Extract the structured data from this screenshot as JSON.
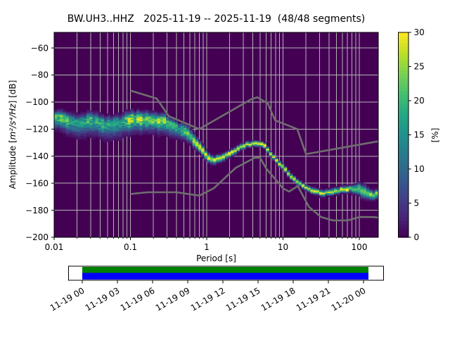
{
  "chart_data": {
    "type": "heatmap",
    "description": "PPSD probabilistic power spectral density plot with Peterson noise model reference curves and data-coverage timeline",
    "title": "BW.UH3..HHZ   2025-11-19 -- 2025-11-19  (48/48 segments)",
    "xlabel": "Period [s]",
    "ylabel": "Amplitude [m²/s⁴/Hz] [dB]",
    "ylabel_parts": {
      "prefix": "Amplitude [",
      "math": "m²/s⁴/Hz",
      "suffix": "] [dB]"
    },
    "xscale": "log",
    "xlim": [
      0.01,
      177.8
    ],
    "ylim": [
      -200,
      -48.5
    ],
    "x_tick_labels": [
      "0.01",
      "0.1",
      "1",
      "10",
      "100"
    ],
    "x_tick_values": [
      0.01,
      0.1,
      1,
      10,
      100
    ],
    "y_tick_values": [
      -60,
      -80,
      -100,
      -120,
      -140,
      -160,
      -180,
      -200
    ],
    "grid": true,
    "background_color": "#440154",
    "grid_color": "#b3b3b3",
    "colorbar": {
      "label": "[%]",
      "min": 0,
      "max": 30,
      "ticks": [
        0,
        5,
        10,
        15,
        20,
        25,
        30
      ],
      "colormap": "viridis"
    },
    "noise_models": {
      "color": "#6f6f6f",
      "nlnm": [
        [
          0.1,
          -168
        ],
        [
          0.17,
          -166.7
        ],
        [
          0.4,
          -166.7
        ],
        [
          0.8,
          -169.2
        ],
        [
          1.24,
          -163.7
        ],
        [
          2.4,
          -148.6
        ],
        [
          4.3,
          -141.1
        ],
        [
          5,
          -141.1
        ],
        [
          6,
          -149
        ],
        [
          10,
          -163.8
        ],
        [
          12,
          -166.2
        ],
        [
          15.6,
          -162.1
        ],
        [
          21.9,
          -177.5
        ],
        [
          31.6,
          -185
        ],
        [
          45,
          -187.5
        ],
        [
          70,
          -187.5
        ],
        [
          101,
          -185
        ],
        [
          154,
          -185
        ],
        [
          177.8,
          -185.5
        ]
      ],
      "nhnm": [
        [
          0.1,
          -91.5
        ],
        [
          0.22,
          -97.4
        ],
        [
          0.32,
          -110.5
        ],
        [
          0.8,
          -120
        ],
        [
          3.8,
          -98
        ],
        [
          4.6,
          -96.5
        ],
        [
          6.3,
          -101
        ],
        [
          7.9,
          -113.5
        ],
        [
          15.4,
          -120
        ],
        [
          20,
          -138.5
        ],
        [
          177.8,
          -129
        ]
      ]
    },
    "mode_curve_columns": [
      "period_s",
      "mode_db",
      "peak_percent",
      "spread_db"
    ],
    "mode_curve": [
      [
        0.01,
        -110.5,
        30,
        4.0
      ],
      [
        0.013,
        -111.5,
        22,
        4.8
      ],
      [
        0.017,
        -114.5,
        17,
        5.2
      ],
      [
        0.021,
        -115.5,
        16,
        5.5
      ],
      [
        0.029,
        -113.0,
        18,
        5.5
      ],
      [
        0.038,
        -114.5,
        17,
        5.5
      ],
      [
        0.054,
        -117.0,
        16,
        5.5
      ],
      [
        0.072,
        -115.5,
        18,
        5.5
      ],
      [
        0.1,
        -112.5,
        24,
        5.2
      ],
      [
        0.16,
        -112.0,
        26,
        4.8
      ],
      [
        0.22,
        -113.0,
        24,
        4.8
      ],
      [
        0.3,
        -114.5,
        22,
        4.6
      ],
      [
        0.4,
        -119.0,
        20,
        4.0
      ],
      [
        0.52,
        -121.7,
        22,
        3.0
      ],
      [
        0.65,
        -127.0,
        24,
        2.6
      ],
      [
        0.8,
        -133.0,
        26,
        2.2
      ],
      [
        1.0,
        -140.0,
        28,
        1.8
      ],
      [
        1.2,
        -143.2,
        30,
        1.6
      ],
      [
        1.5,
        -141.8,
        30,
        1.4
      ],
      [
        2.0,
        -138.5,
        28,
        1.3
      ],
      [
        2.6,
        -134.8,
        28,
        1.2
      ],
      [
        3.3,
        -131.5,
        30,
        1.1
      ],
      [
        4.5,
        -130.7,
        30,
        1.1
      ],
      [
        5.7,
        -131.8,
        30,
        1.1
      ],
      [
        7.7,
        -141.6,
        30,
        1.1
      ],
      [
        9.5,
        -146.8,
        30,
        1.1
      ],
      [
        11.8,
        -152.8,
        30,
        1.1
      ],
      [
        14.6,
        -158.0,
        30,
        1.1
      ],
      [
        19.4,
        -163.2,
        28,
        1.1
      ],
      [
        26.0,
        -165.8,
        28,
        1.2
      ],
      [
        34.0,
        -167.5,
        28,
        1.2
      ],
      [
        45.0,
        -166.6,
        28,
        1.2
      ],
      [
        60.0,
        -164.9,
        28,
        1.3
      ],
      [
        80.0,
        -164.0,
        26,
        1.4
      ],
      [
        100.0,
        -164.5,
        20,
        2.4
      ],
      [
        115.0,
        -166.5,
        18,
        2.8
      ],
      [
        143.0,
        -169.0,
        24,
        1.8
      ],
      [
        177.0,
        -168.0,
        22,
        1.8
      ]
    ],
    "timeline": {
      "tick_labels": [
        "11-19 00",
        "11-19 03",
        "11-19 06",
        "11-19 09",
        "11-19 12",
        "11-19 15",
        "11-19 18",
        "11-19 21",
        "11-20 00"
      ],
      "coverage_color": "#008000",
      "segments_color": "#0000ff"
    }
  }
}
